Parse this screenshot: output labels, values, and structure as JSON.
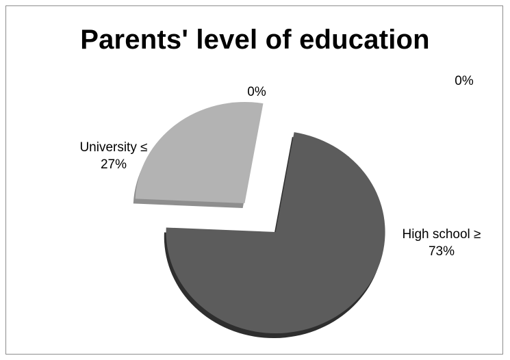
{
  "chart_data": {
    "type": "pie",
    "title": "Parents' level of education",
    "slices": [
      {
        "label": "High school ≥",
        "value": 73,
        "display": "73%",
        "color": "#5c5c5c",
        "shade": "#2e2e2e"
      },
      {
        "label": "University ≤",
        "value": 27,
        "display": "27%",
        "color": "#b3b3b3",
        "shade": "#8e8e8e"
      },
      {
        "label": "",
        "value": 0,
        "display": "0%",
        "color": "#9a9a9a",
        "shade": "#777777"
      },
      {
        "label": "",
        "value": 0,
        "display": "0%",
        "color": "#9a9a9a",
        "shade": "#777777"
      }
    ],
    "exploded": true,
    "style": "3d-perspective",
    "legend": "none"
  }
}
